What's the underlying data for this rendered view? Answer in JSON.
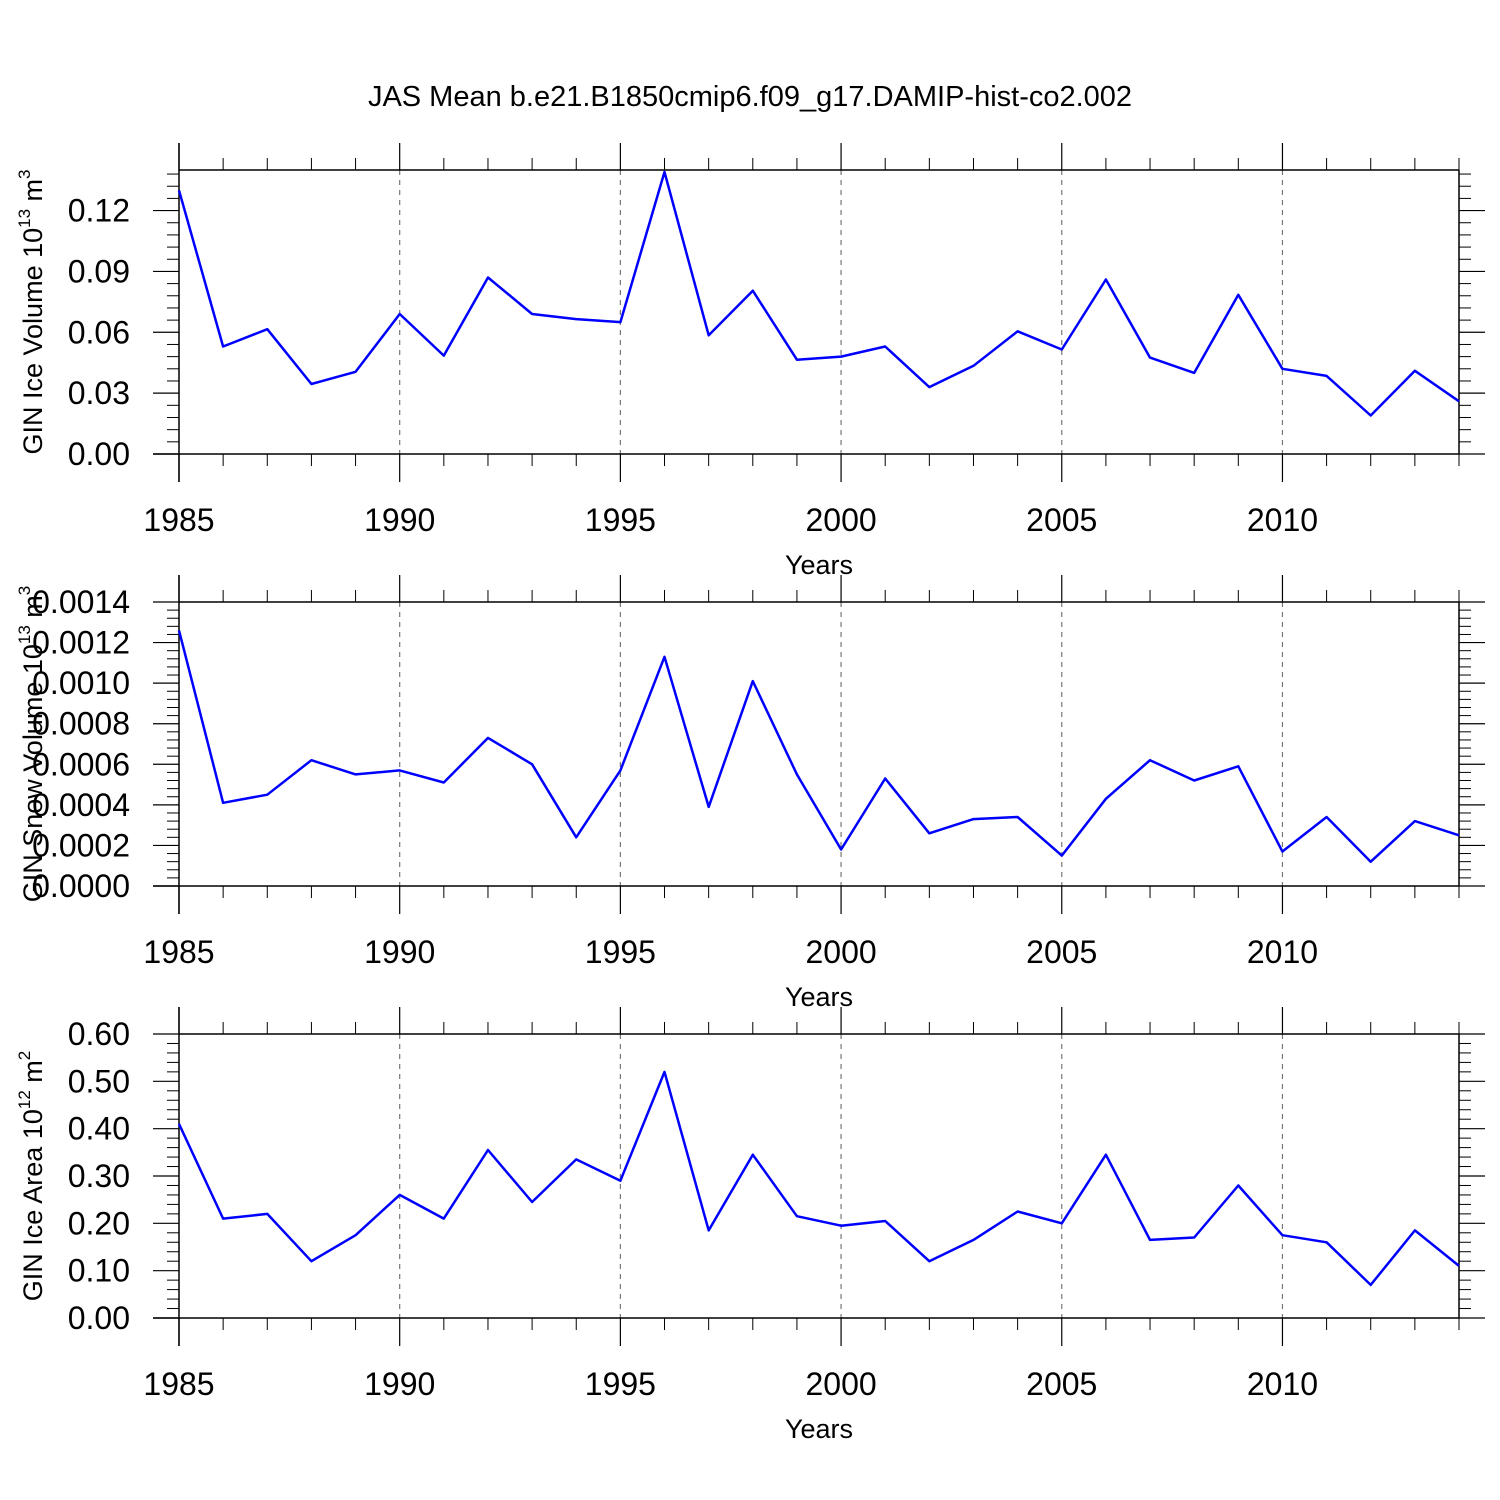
{
  "title": "JAS Mean b.e21.B1850cmip6.f09_g17.DAMIP-hist-co2.002",
  "colors": {
    "line": "#0000ff",
    "grid": "#777777"
  },
  "chart_data": [
    {
      "type": "line",
      "ylabel": "GIN Ice Volume 10",
      "ylabel_sup": "13",
      "ylabel_unit": " m",
      "ylabel_unit_sup": "3",
      "xlabel": "Years",
      "xlim": [
        1985,
        2014
      ],
      "ylim": [
        0,
        0.14
      ],
      "xticks": [
        "1985",
        "1990",
        "1995",
        "2000",
        "2005",
        "2010"
      ],
      "yticks": [
        "0.00",
        "0.03",
        "0.06",
        "0.09",
        "0.12"
      ],
      "grid": "vertical dashed at major x ticks",
      "x": [
        1985,
        1986,
        1987,
        1988,
        1989,
        1990,
        1991,
        1992,
        1993,
        1994,
        1995,
        1996,
        1997,
        1998,
        1999,
        2000,
        2001,
        2002,
        2003,
        2004,
        2005,
        2006,
        2007,
        2008,
        2009,
        2010,
        2011,
        2012,
        2013,
        2014
      ],
      "values": [
        0.13,
        0.053,
        0.0615,
        0.0345,
        0.0405,
        0.069,
        0.0485,
        0.087,
        0.069,
        0.0665,
        0.065,
        0.139,
        0.0585,
        0.0805,
        0.0465,
        0.048,
        0.053,
        0.033,
        0.0435,
        0.0605,
        0.0515,
        0.086,
        0.0475,
        0.04,
        0.0785,
        0.042,
        0.0385,
        0.019,
        0.041,
        0.026
      ]
    },
    {
      "type": "line",
      "ylabel": "GIN Snow Volume 10",
      "ylabel_sup": "13",
      "ylabel_unit": " m",
      "ylabel_unit_sup": "3",
      "xlabel": "Years",
      "xlim": [
        1985,
        2014
      ],
      "ylim": [
        0,
        0.0014
      ],
      "xticks": [
        "1985",
        "1990",
        "1995",
        "2000",
        "2005",
        "2010"
      ],
      "yticks": [
        "0.0000",
        "0.0002",
        "0.0004",
        "0.0006",
        "0.0008",
        "0.0010",
        "0.0012",
        "0.0014"
      ],
      "grid": "vertical dashed at major x ticks",
      "x": [
        1985,
        1986,
        1987,
        1988,
        1989,
        1990,
        1991,
        1992,
        1993,
        1994,
        1995,
        1996,
        1997,
        1998,
        1999,
        2000,
        2001,
        2002,
        2003,
        2004,
        2005,
        2006,
        2007,
        2008,
        2009,
        2010,
        2011,
        2012,
        2013,
        2014
      ],
      "values": [
        0.00126,
        0.00041,
        0.00045,
        0.00062,
        0.00055,
        0.00057,
        0.00051,
        0.00073,
        0.0006,
        0.00024,
        0.00057,
        0.00113,
        0.00039,
        0.00101,
        0.00055,
        0.00018,
        0.00053,
        0.00026,
        0.00033,
        0.00034,
        0.00015,
        0.00043,
        0.00062,
        0.00052,
        0.00059,
        0.00017,
        0.00034,
        0.00012,
        0.00032,
        0.00025
      ]
    },
    {
      "type": "line",
      "ylabel": "GIN Ice Area 10",
      "ylabel_sup": "12",
      "ylabel_unit": " m",
      "ylabel_unit_sup": "2",
      "xlabel": "Years",
      "xlim": [
        1985,
        2014
      ],
      "ylim": [
        0,
        0.6
      ],
      "xticks": [
        "1985",
        "1990",
        "1995",
        "2000",
        "2005",
        "2010"
      ],
      "yticks": [
        "0.00",
        "0.10",
        "0.20",
        "0.30",
        "0.40",
        "0.50",
        "0.60"
      ],
      "grid": "vertical dashed at major x ticks",
      "x": [
        1985,
        1986,
        1987,
        1988,
        1989,
        1990,
        1991,
        1992,
        1993,
        1994,
        1995,
        1996,
        1997,
        1998,
        1999,
        2000,
        2001,
        2002,
        2003,
        2004,
        2005,
        2006,
        2007,
        2008,
        2009,
        2010,
        2011,
        2012,
        2013,
        2014
      ],
      "values": [
        0.41,
        0.21,
        0.22,
        0.12,
        0.175,
        0.26,
        0.21,
        0.355,
        0.245,
        0.335,
        0.29,
        0.52,
        0.185,
        0.345,
        0.215,
        0.195,
        0.205,
        0.12,
        0.165,
        0.225,
        0.2,
        0.345,
        0.165,
        0.17,
        0.28,
        0.175,
        0.16,
        0.07,
        0.185,
        0.11
      ]
    }
  ]
}
